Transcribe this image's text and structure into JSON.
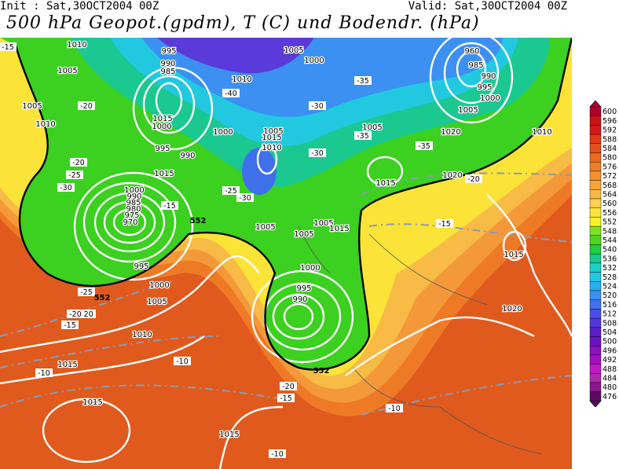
{
  "header": {
    "init": "Init : Sat,30OCT2004 00Z",
    "valid": "Valid: Sat,30OCT2004 00Z",
    "title": "500 hPa Geopot.(gpdm), T (C) und Bodendr. (hPa)"
  },
  "map": {
    "geopotential_contour_label": "552",
    "pressure_labels": [
      "1010",
      "1005",
      "995",
      "990",
      "985",
      "1005",
      "1000",
      "1010",
      "960",
      "985",
      "990",
      "995",
      "1000",
      "1005",
      "1005",
      "1010",
      "1015",
      "1000",
      "995",
      "990",
      "1000",
      "1005",
      "1015",
      "1010",
      "1005",
      "1020",
      "1010",
      "1015",
      "1015",
      "1020",
      "1000",
      "990",
      "985",
      "980",
      "975",
      "970",
      "995",
      "1000",
      "1005",
      "1010",
      "1015",
      "1005",
      "1000",
      "995",
      "990",
      "1005",
      "1005",
      "1015",
      "1015",
      "1020",
      "1015",
      "1015"
    ],
    "temperature_labels": [
      "-15",
      "-20",
      "-20",
      "-25",
      "-30",
      "-40",
      "-30",
      "-35",
      "-35",
      "-30",
      "-35",
      "-25",
      "-30",
      "-15",
      "-20",
      "-25",
      "-20",
      "-15",
      "-20",
      "-15",
      "-10",
      "-10",
      "-20",
      "-15",
      "-10",
      "-10",
      "-15",
      "-20"
    ]
  },
  "legend": {
    "values": [
      "600",
      "596",
      "592",
      "588",
      "584",
      "580",
      "576",
      "572",
      "568",
      "564",
      "560",
      "556",
      "552",
      "548",
      "544",
      "540",
      "536",
      "532",
      "528",
      "524",
      "520",
      "516",
      "512",
      "508",
      "504",
      "500",
      "496",
      "492",
      "488",
      "484",
      "480",
      "476"
    ],
    "colors": [
      "#b0002a",
      "#c81414",
      "#d4181c",
      "#e03a1a",
      "#e4501c",
      "#ec6a22",
      "#f07d26",
      "#f39030",
      "#f6a53a",
      "#f8b944",
      "#fbcf50",
      "#fde43a",
      "#f8f328",
      "#7ee21e",
      "#4fd41c",
      "#22cc3c",
      "#18c88c",
      "#1ad0c6",
      "#20c8e4",
      "#28b0f0",
      "#3c90f2",
      "#4070ec",
      "#4a50e6",
      "#5236dc",
      "#5c1ec8",
      "#6a12c0",
      "#8a10c0",
      "#a410c0",
      "#c218c4",
      "#b02ab0",
      "#8a1a8c",
      "#5c0a60"
    ]
  }
}
